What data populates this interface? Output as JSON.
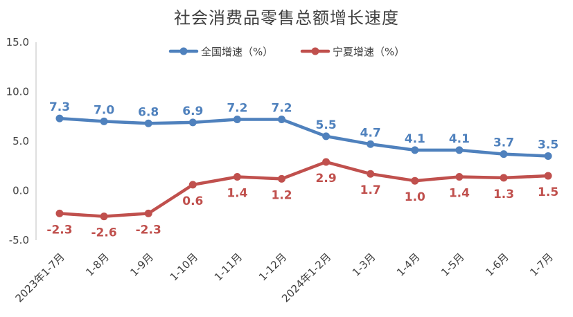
{
  "chart_data": {
    "type": "line",
    "title": "社会消费品零售总额增长速度",
    "categories": [
      "2023年1-7月",
      "1-8月",
      "1-9月",
      "1-10月",
      "1-11月",
      "1-12月",
      "2024年1-2月",
      "1-3月",
      "1-4月",
      "1-5月",
      "1-6月",
      "1-7月"
    ],
    "series": [
      {
        "name": "全国增速（%）",
        "color": "#4F81BD",
        "values": [
          7.3,
          7.0,
          6.8,
          6.9,
          7.2,
          7.2,
          5.5,
          4.7,
          4.1,
          4.1,
          3.7,
          3.5
        ],
        "labels": [
          "7.3",
          "7.0",
          "6.8",
          "6.9",
          "7.2",
          "7.2",
          "5.5",
          "4.7",
          "4.1",
          "4.1",
          "3.7",
          "3.5"
        ],
        "label_position": "above"
      },
      {
        "name": "宁夏增速（%）",
        "color": "#C0504D",
        "values": [
          -2.3,
          -2.6,
          -2.3,
          0.6,
          1.4,
          1.2,
          2.9,
          1.7,
          1.0,
          1.4,
          1.3,
          1.5
        ],
        "labels": [
          "-2.3",
          "-2.6",
          "-2.3",
          "0.6",
          "1.4",
          "1.2",
          "2.9",
          "1.7",
          "1.0",
          "1.4",
          "1.3",
          "1.5"
        ],
        "label_position": "below"
      }
    ],
    "y_ticks": [
      "15.0",
      "10.0",
      "5.0",
      "0.0",
      "-5.0"
    ],
    "ylim": [
      -5,
      15
    ],
    "grid": false,
    "legend": "top-center"
  }
}
